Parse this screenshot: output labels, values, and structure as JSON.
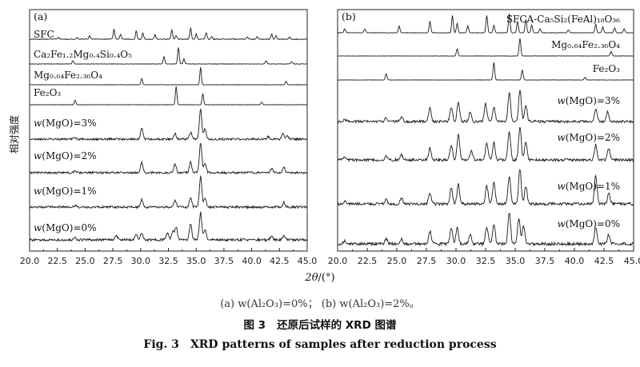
{
  "figure": {
    "ylabel": "相对强度",
    "xlabel_symbol": "2θ",
    "xlabel_unit": "/(°)",
    "subcaption": "(a) w(Al₂O₃)=0%；  (b) w(Al₂O₃)=2%。",
    "title_cn_num": "图 3",
    "title_cn": "还原后试样的 XRD 图谱",
    "title_en_num": "Fig. 3",
    "title_en": "XRD patterns of samples after reduction process"
  },
  "chart_data": [
    {
      "type": "line",
      "panel": "(a)",
      "xlabel": "2θ/(°)",
      "ylabel": "相对强度",
      "xlim": [
        20,
        45
      ],
      "x_ticks": [
        "20.0",
        "22.5",
        "25.0",
        "27.5",
        "30.0",
        "32.5",
        "35.0",
        "37.5",
        "40.0",
        "42.5",
        "45.0"
      ],
      "series": [
        {
          "name": "SFC",
          "kind": "reference",
          "peaks": [
            [
              22.6,
              0.15
            ],
            [
              24.3,
              0.15
            ],
            [
              25.4,
              0.3
            ],
            [
              27.6,
              0.9
            ],
            [
              28.2,
              0.4
            ],
            [
              29.6,
              0.75
            ],
            [
              30.2,
              0.55
            ],
            [
              31.3,
              0.4
            ],
            [
              32.8,
              0.85
            ],
            [
              33.2,
              0.35
            ],
            [
              34.5,
              1.0
            ],
            [
              35.0,
              0.45
            ],
            [
              35.9,
              0.6
            ],
            [
              36.4,
              0.25
            ],
            [
              39.6,
              0.2
            ],
            [
              40.5,
              0.25
            ],
            [
              41.8,
              0.45
            ],
            [
              42.2,
              0.3
            ],
            [
              43.4,
              0.2
            ]
          ]
        },
        {
          "name": "Ca2Fe1.2Mg0.4Si0.4O5",
          "kind": "reference",
          "peaks": [
            [
              23.9,
              0.2
            ],
            [
              32.1,
              0.45
            ],
            [
              33.4,
              1.0
            ],
            [
              33.9,
              0.3
            ],
            [
              41.3,
              0.2
            ],
            [
              43.6,
              0.15
            ]
          ]
        },
        {
          "name": "Mg0.64Fe2.36O4",
          "kind": "reference",
          "peaks": [
            [
              30.1,
              0.35
            ],
            [
              35.4,
              1.0
            ],
            [
              43.1,
              0.2
            ]
          ]
        },
        {
          "name": "Fe2O3",
          "kind": "reference",
          "peaks": [
            [
              24.1,
              0.25
            ],
            [
              33.2,
              1.0
            ],
            [
              35.6,
              0.6
            ],
            [
              40.9,
              0.15
            ]
          ]
        },
        {
          "name": "w(MgO)=3%",
          "kind": "measured",
          "peaks": [
            [
              24.1,
              0.06
            ],
            [
              30.1,
              0.35
            ],
            [
              33.1,
              0.18
            ],
            [
              34.5,
              0.22
            ],
            [
              35.4,
              1.0
            ],
            [
              35.8,
              0.35
            ],
            [
              41.5,
              0.08
            ],
            [
              42.8,
              0.18
            ],
            [
              43.2,
              0.12
            ]
          ]
        },
        {
          "name": "w(MgO)=2%",
          "kind": "measured",
          "peaks": [
            [
              24.1,
              0.06
            ],
            [
              30.1,
              0.35
            ],
            [
              33.1,
              0.28
            ],
            [
              34.5,
              0.35
            ],
            [
              35.4,
              1.0
            ],
            [
              35.8,
              0.3
            ],
            [
              41.8,
              0.15
            ],
            [
              42.9,
              0.18
            ]
          ]
        },
        {
          "name": "w(MgO)=1%",
          "kind": "measured",
          "peaks": [
            [
              24.1,
              0.06
            ],
            [
              30.1,
              0.25
            ],
            [
              33.1,
              0.22
            ],
            [
              34.5,
              0.3
            ],
            [
              35.4,
              1.0
            ],
            [
              35.8,
              0.3
            ],
            [
              42.9,
              0.15
            ]
          ]
        },
        {
          "name": "w(MgO)=0%",
          "kind": "measured",
          "peaks": [
            [
              24.1,
              0.08
            ],
            [
              27.8,
              0.15
            ],
            [
              29.6,
              0.2
            ],
            [
              30.1,
              0.25
            ],
            [
              32.4,
              0.25
            ],
            [
              32.9,
              0.3
            ],
            [
              33.2,
              0.45
            ],
            [
              34.5,
              0.55
            ],
            [
              35.4,
              0.95
            ],
            [
              35.8,
              0.35
            ],
            [
              41.8,
              0.15
            ],
            [
              42.9,
              0.15
            ]
          ]
        }
      ],
      "legend_labels": [
        {
          "text": "SFC"
        },
        {
          "text": "Ca₂Fe₁.₂Mg₀.₄Si₀.₄O₅"
        },
        {
          "text": "Mg₀.₆₄Fe₂.₃₆O₄"
        },
        {
          "text": "Fe₂O₃"
        },
        {
          "text": "w(MgO)=3%"
        },
        {
          "text": "w(MgO)=2%"
        },
        {
          "text": "w(MgO)=1%"
        },
        {
          "text": "w(MgO)=0%"
        }
      ]
    },
    {
      "type": "line",
      "panel": "(b)",
      "xlabel": "2θ/(°)",
      "ylabel": "相对强度",
      "xlim": [
        20,
        45
      ],
      "x_ticks": [
        "20.0",
        "22.5",
        "25.0",
        "27.5",
        "30.0",
        "32.5",
        "35.0",
        "37.5",
        "40.0",
        "42.5",
        "45.0"
      ],
      "series": [
        {
          "name": "SFCA-Ca5Si2(FeAl)18O36",
          "kind": "reference",
          "peaks": [
            [
              20.6,
              0.2
            ],
            [
              22.3,
              0.2
            ],
            [
              25.2,
              0.35
            ],
            [
              27.8,
              0.6
            ],
            [
              29.7,
              0.9
            ],
            [
              30.1,
              0.5
            ],
            [
              31.0,
              0.35
            ],
            [
              32.6,
              0.9
            ],
            [
              33.2,
              0.4
            ],
            [
              34.5,
              1.0
            ],
            [
              35.2,
              0.6
            ],
            [
              35.9,
              0.7
            ],
            [
              36.4,
              0.4
            ],
            [
              37.1,
              0.2
            ],
            [
              39.5,
              0.15
            ],
            [
              41.8,
              0.45
            ],
            [
              42.4,
              0.3
            ],
            [
              43.4,
              0.25
            ],
            [
              44.2,
              0.2
            ]
          ]
        },
        {
          "name": "Mg0.64Fe2.36O4",
          "kind": "reference",
          "peaks": [
            [
              30.1,
              0.4
            ],
            [
              35.4,
              1.0
            ],
            [
              43.1,
              0.25
            ]
          ]
        },
        {
          "name": "Fe2O3",
          "kind": "reference",
          "peaks": [
            [
              24.1,
              0.35
            ],
            [
              33.2,
              1.0
            ],
            [
              35.6,
              0.55
            ],
            [
              40.9,
              0.15
            ]
          ]
        },
        {
          "name": "w(MgO)=3%",
          "kind": "measured",
          "peaks": [
            [
              20.6,
              0.08
            ],
            [
              24.1,
              0.1
            ],
            [
              25.4,
              0.15
            ],
            [
              27.8,
              0.45
            ],
            [
              29.6,
              0.45
            ],
            [
              30.2,
              0.6
            ],
            [
              31.2,
              0.3
            ],
            [
              32.5,
              0.55
            ],
            [
              33.2,
              0.45
            ],
            [
              34.5,
              0.9
            ],
            [
              35.4,
              1.0
            ],
            [
              35.9,
              0.5
            ],
            [
              41.8,
              0.4
            ],
            [
              42.8,
              0.3
            ]
          ]
        },
        {
          "name": "w(MgO)=2%",
          "kind": "measured",
          "peaks": [
            [
              20.6,
              0.08
            ],
            [
              24.1,
              0.12
            ],
            [
              25.4,
              0.15
            ],
            [
              27.8,
              0.35
            ],
            [
              29.6,
              0.45
            ],
            [
              30.2,
              0.75
            ],
            [
              31.3,
              0.25
            ],
            [
              32.6,
              0.5
            ],
            [
              33.2,
              0.5
            ],
            [
              34.5,
              0.85
            ],
            [
              35.4,
              1.0
            ],
            [
              35.9,
              0.55
            ],
            [
              41.8,
              0.45
            ],
            [
              42.9,
              0.35
            ]
          ]
        },
        {
          "name": "w(MgO)=1%",
          "kind": "measured",
          "peaks": [
            [
              20.6,
              0.08
            ],
            [
              24.1,
              0.12
            ],
            [
              25.4,
              0.15
            ],
            [
              27.8,
              0.3
            ],
            [
              29.6,
              0.45
            ],
            [
              30.2,
              0.55
            ],
            [
              32.6,
              0.5
            ],
            [
              33.2,
              0.6
            ],
            [
              34.5,
              0.8
            ],
            [
              35.4,
              1.0
            ],
            [
              35.9,
              0.5
            ],
            [
              41.8,
              0.8
            ],
            [
              42.9,
              0.3
            ]
          ]
        },
        {
          "name": "w(MgO)=0%",
          "kind": "measured",
          "peaks": [
            [
              20.6,
              0.1
            ],
            [
              24.1,
              0.15
            ],
            [
              25.4,
              0.15
            ],
            [
              27.8,
              0.4
            ],
            [
              29.6,
              0.5
            ],
            [
              30.1,
              0.5
            ],
            [
              31.2,
              0.3
            ],
            [
              32.6,
              0.55
            ],
            [
              33.2,
              0.6
            ],
            [
              34.5,
              1.0
            ],
            [
              35.3,
              0.8
            ],
            [
              35.7,
              0.6
            ],
            [
              41.8,
              0.5
            ],
            [
              42.9,
              0.3
            ]
          ]
        }
      ],
      "legend_labels": [
        {
          "text": "SFCA-Ca₅Si₂(FeAl)₁₈O₃₆"
        },
        {
          "text": "Mg₀.₆₄Fe₂.₃₆O₄"
        },
        {
          "text": "Fe₂O₃"
        },
        {
          "text": "w(MgO)=3%"
        },
        {
          "text": "w(MgO)=2%"
        },
        {
          "text": "w(MgO)=1%"
        },
        {
          "text": "w(MgO)=0%"
        }
      ]
    }
  ]
}
